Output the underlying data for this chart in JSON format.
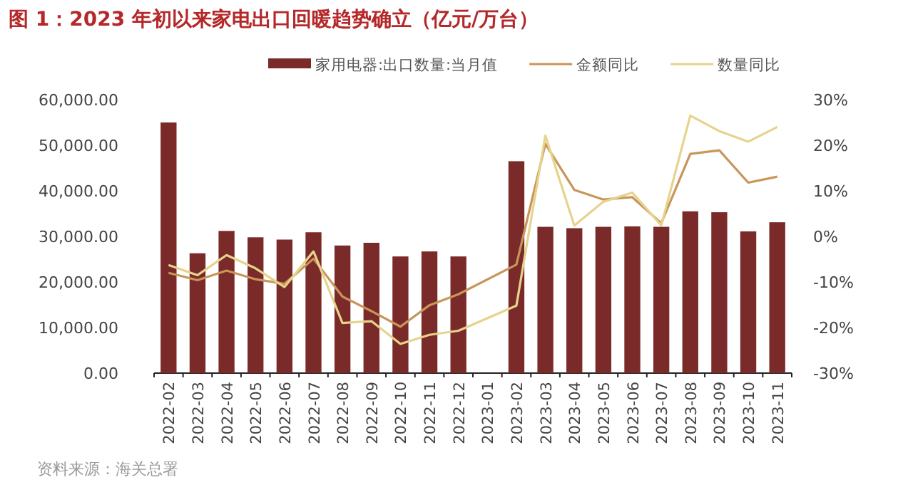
{
  "chart_data": {
    "type": "bar",
    "title": "图 1：2023 年初以来家电出口回暖趋势确立（亿元/万台）",
    "categories": [
      "2022-02",
      "2022-03",
      "2022-04",
      "2022-05",
      "2022-06",
      "2022-07",
      "2022-08",
      "2022-09",
      "2022-10",
      "2022-11",
      "2022-12",
      "2023-01",
      "2023-02",
      "2023-03",
      "2023-04",
      "2023-05",
      "2023-06",
      "2023-07",
      "2023-08",
      "2023-09",
      "2023-10",
      "2023-11"
    ],
    "series": [
      {
        "name": "家用电器:出口数量:当月值",
        "color": "#7b2a2a",
        "values": [
          55000,
          26300,
          31200,
          29800,
          29300,
          30900,
          28000,
          28600,
          25600,
          26700,
          25600,
          null,
          46500,
          32100,
          31800,
          32100,
          32200,
          32100,
          35500,
          35300,
          31100,
          33100
        ]
      },
      {
        "name": "金额同比",
        "type": "line",
        "axis": "y2",
        "color": "#c8955a",
        "values": [
          -8.0,
          -9.6,
          -7.5,
          -9.4,
          -10.4,
          -4.9,
          -13.2,
          -16.4,
          -19.8,
          -15.1,
          -12.7,
          null,
          -6.2,
          20.3,
          10.2,
          8.1,
          8.6,
          2.9,
          18.1,
          18.9,
          11.8,
          13.1
        ]
      },
      {
        "name": "数量同比",
        "type": "line",
        "axis": "y2",
        "color": "#e6d38c",
        "values": [
          -6.3,
          -8.5,
          -4.1,
          -7.0,
          -11.1,
          -3.3,
          -19.0,
          -18.6,
          -23.6,
          -21.6,
          -20.7,
          null,
          -15.2,
          22.1,
          2.4,
          7.6,
          9.6,
          2.4,
          26.5,
          23.1,
          20.8,
          24.0
        ]
      }
    ],
    "ylim": [
      0,
      60000
    ],
    "yticks": [
      {
        "value": 0,
        "label": "0.00"
      },
      {
        "value": 10000,
        "label": "10,000.00"
      },
      {
        "value": 20000,
        "label": "20,000.00"
      },
      {
        "value": 30000,
        "label": "30,000.00"
      },
      {
        "value": 40000,
        "label": "40,000.00"
      },
      {
        "value": 50000,
        "label": "50,000.00"
      },
      {
        "value": 60000,
        "label": "60,000.00"
      }
    ],
    "y2lim": [
      -30,
      30
    ],
    "y2ticks": [
      {
        "value": -30,
        "label": "-30%"
      },
      {
        "value": -20,
        "label": "-20%"
      },
      {
        "value": -10,
        "label": "-10%"
      },
      {
        "value": 0,
        "label": "0%"
      },
      {
        "value": 10,
        "label": "10%"
      },
      {
        "value": 20,
        "label": "20%"
      },
      {
        "value": 30,
        "label": "30%"
      }
    ],
    "legend": "top",
    "annotations": [
      "资料来源：海关总署"
    ]
  }
}
